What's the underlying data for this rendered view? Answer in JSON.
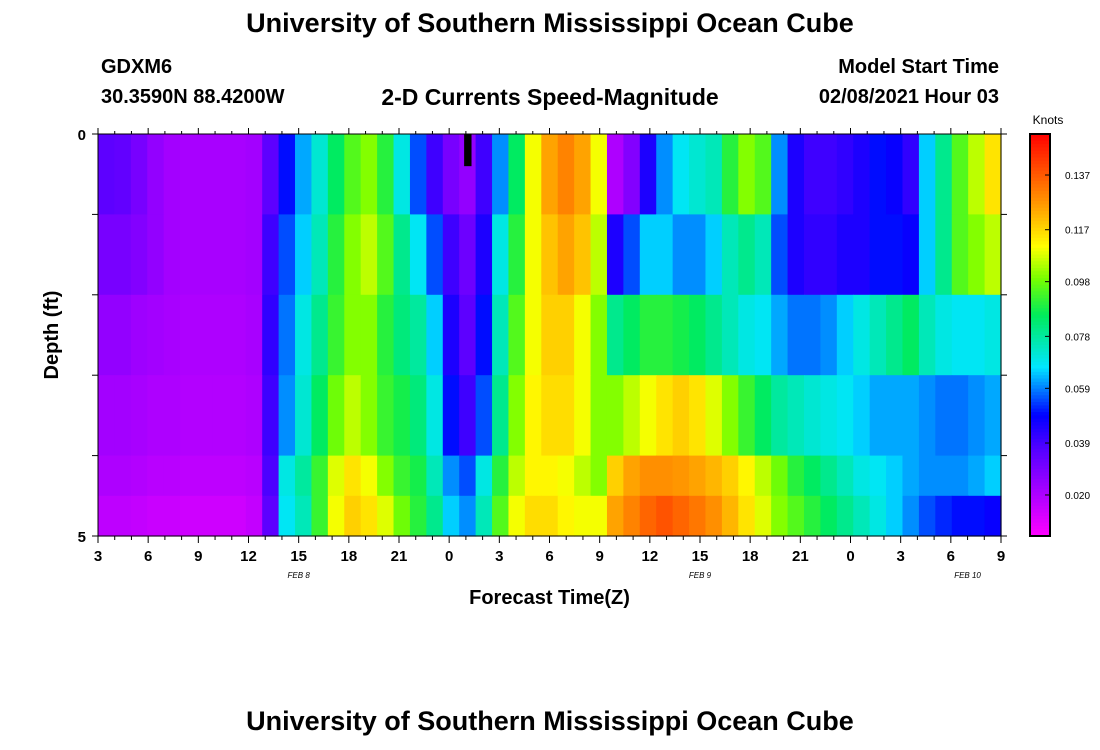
{
  "header": {
    "title": "University of Southern Mississippi Ocean Cube",
    "station": "GDXM6",
    "coords": "30.3590N 88.4200W",
    "start_label": "Model Start Time",
    "start_value": "02/08/2021 Hour 03",
    "footer_title": "University of Southern Mississippi Ocean Cube"
  },
  "chart_data": {
    "type": "heatmap",
    "title": "2-D Currents Speed-Magnitude",
    "xlabel": "Forecast Time(Z)",
    "ylabel": "Depth (ft)",
    "units": "Knots",
    "x_hours_from_start": [
      0,
      54
    ],
    "x_tick_labels": [
      "3",
      "6",
      "9",
      "12",
      "15",
      "18",
      "21",
      "0",
      "3",
      "6",
      "9",
      "12",
      "15",
      "18",
      "21",
      "0",
      "3",
      "6",
      "9"
    ],
    "date_labels": [
      {
        "text": "FEB 8",
        "hour": 12
      },
      {
        "text": "FEB 9",
        "hour": 36
      },
      {
        "text": "FEB 10",
        "hour": 52
      }
    ],
    "y_ticks": [
      "0",
      "5"
    ],
    "ylim": [
      0,
      5
    ],
    "colorbar": {
      "min": 0.005,
      "max": 0.152,
      "ticks": [
        0.02,
        0.039,
        0.059,
        0.078,
        0.098,
        0.117,
        0.137
      ],
      "labels": [
        "0.020",
        "0.039",
        "0.059",
        "0.078",
        "0.098",
        "0.117",
        "0.137"
      ]
    },
    "depth_levels": [
      0.25,
      1.0,
      2.0,
      3.0,
      4.0,
      4.75
    ],
    "grid": {
      "hours": [
        0,
        1,
        2,
        3,
        4,
        5,
        6,
        7,
        8,
        9,
        10,
        11,
        12,
        13,
        14,
        15,
        16,
        17,
        18,
        19,
        20,
        21,
        22,
        23,
        24,
        25,
        26,
        27,
        28,
        29,
        30,
        31,
        32,
        33,
        34,
        35,
        36,
        37,
        38,
        39,
        40,
        41,
        42,
        43,
        44,
        45,
        46,
        47,
        48,
        49,
        50,
        51,
        52,
        53,
        54
      ],
      "values": [
        [
          0.035,
          0.034,
          0.03,
          0.025,
          0.022,
          0.021,
          0.021,
          0.021,
          0.021,
          0.022,
          0.035,
          0.05,
          0.062,
          0.072,
          0.085,
          0.095,
          0.1,
          0.09,
          0.07,
          0.055,
          0.04,
          0.03,
          0.025,
          0.04,
          0.06,
          0.085,
          0.11,
          0.125,
          0.13,
          0.125,
          0.11,
          0.02,
          0.028,
          0.045,
          0.06,
          0.068,
          0.072,
          0.075,
          0.09,
          0.1,
          0.095,
          0.06,
          0.045,
          0.04,
          0.04,
          0.042,
          0.045,
          0.05,
          0.048,
          0.042,
          0.065,
          0.08,
          0.095,
          0.105,
          0.115
        ],
        [
          0.03,
          0.03,
          0.028,
          0.025,
          0.022,
          0.021,
          0.021,
          0.021,
          0.021,
          0.022,
          0.04,
          0.055,
          0.065,
          0.075,
          0.09,
          0.1,
          0.105,
          0.095,
          0.08,
          0.068,
          0.055,
          0.04,
          0.032,
          0.045,
          0.07,
          0.09,
          0.11,
          0.12,
          0.125,
          0.12,
          0.105,
          0.045,
          0.055,
          0.065,
          0.065,
          0.06,
          0.06,
          0.065,
          0.075,
          0.08,
          0.075,
          0.055,
          0.045,
          0.042,
          0.042,
          0.045,
          0.045,
          0.05,
          0.05,
          0.048,
          0.065,
          0.08,
          0.095,
          0.1,
          0.105
        ],
        [
          0.025,
          0.025,
          0.023,
          0.022,
          0.021,
          0.02,
          0.02,
          0.02,
          0.02,
          0.021,
          0.042,
          0.058,
          0.07,
          0.08,
          0.092,
          0.1,
          0.1,
          0.09,
          0.082,
          0.078,
          0.065,
          0.045,
          0.035,
          0.05,
          0.075,
          0.095,
          0.11,
          0.118,
          0.118,
          0.11,
          0.1,
          0.08,
          0.085,
          0.09,
          0.09,
          0.088,
          0.085,
          0.08,
          0.075,
          0.07,
          0.068,
          0.062,
          0.058,
          0.058,
          0.06,
          0.065,
          0.07,
          0.075,
          0.08,
          0.085,
          0.075,
          0.07,
          0.068,
          0.068,
          0.07
        ],
        [
          0.022,
          0.022,
          0.021,
          0.02,
          0.02,
          0.019,
          0.019,
          0.019,
          0.019,
          0.02,
          0.04,
          0.06,
          0.072,
          0.085,
          0.098,
          0.105,
          0.1,
          0.092,
          0.088,
          0.082,
          0.07,
          0.05,
          0.04,
          0.055,
          0.08,
          0.1,
          0.112,
          0.116,
          0.116,
          0.11,
          0.1,
          0.1,
          0.105,
          0.11,
          0.115,
          0.118,
          0.115,
          0.108,
          0.1,
          0.092,
          0.085,
          0.078,
          0.075,
          0.072,
          0.07,
          0.068,
          0.065,
          0.062,
          0.062,
          0.062,
          0.06,
          0.058,
          0.058,
          0.06,
          0.062
        ],
        [
          0.02,
          0.02,
          0.019,
          0.018,
          0.018,
          0.017,
          0.017,
          0.017,
          0.017,
          0.018,
          0.038,
          0.07,
          0.078,
          0.092,
          0.108,
          0.115,
          0.11,
          0.1,
          0.092,
          0.088,
          0.075,
          0.06,
          0.055,
          0.07,
          0.09,
          0.105,
          0.112,
          0.112,
          0.11,
          0.105,
          0.1,
          0.118,
          0.125,
          0.128,
          0.128,
          0.127,
          0.125,
          0.122,
          0.118,
          0.112,
          0.105,
          0.098,
          0.09,
          0.085,
          0.08,
          0.075,
          0.07,
          0.068,
          0.065,
          0.062,
          0.06,
          0.06,
          0.06,
          0.062,
          0.065
        ],
        [
          0.017,
          0.017,
          0.016,
          0.015,
          0.015,
          0.014,
          0.014,
          0.014,
          0.014,
          0.016,
          0.035,
          0.068,
          0.075,
          0.092,
          0.11,
          0.118,
          0.115,
          0.108,
          0.098,
          0.09,
          0.08,
          0.065,
          0.06,
          0.075,
          0.095,
          0.11,
          0.116,
          0.116,
          0.112,
          0.11,
          0.11,
          0.125,
          0.13,
          0.135,
          0.138,
          0.135,
          0.132,
          0.128,
          0.122,
          0.115,
          0.108,
          0.1,
          0.095,
          0.09,
          0.085,
          0.08,
          0.075,
          0.07,
          0.065,
          0.06,
          0.055,
          0.052,
          0.05,
          0.05,
          0.048
        ]
      ],
      "missing": [
        {
          "hour": 22,
          "depth_level": 0
        }
      ]
    }
  }
}
